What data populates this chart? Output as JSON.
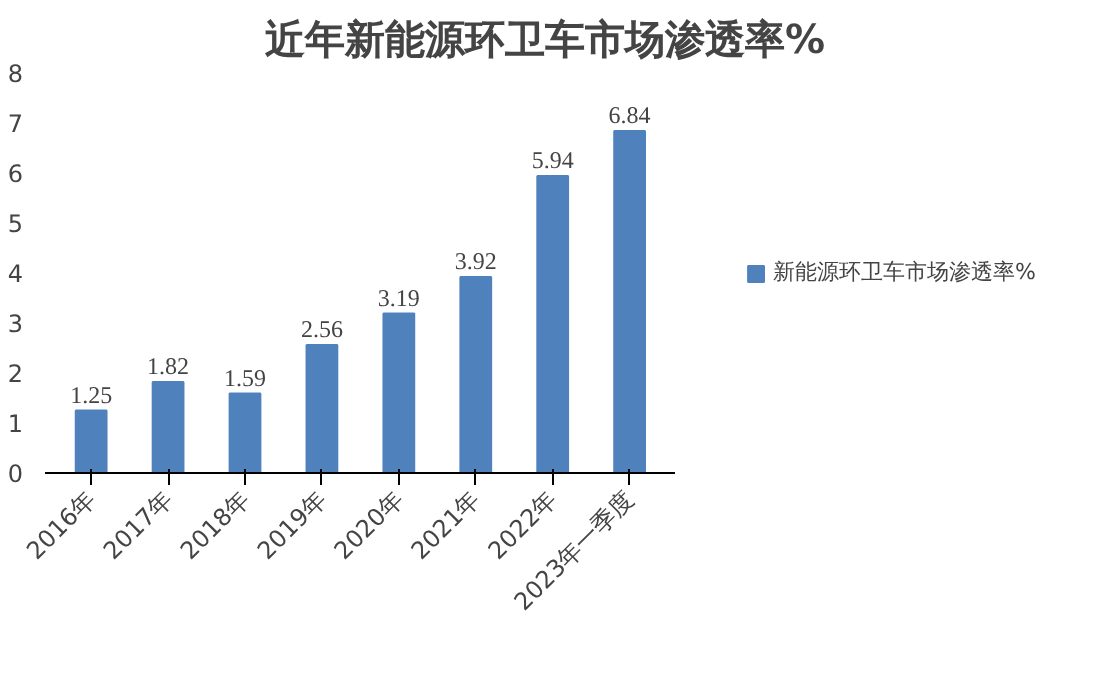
{
  "chart_data": {
    "type": "bar",
    "title": "近年新能源环卫车市场渗透率%",
    "categories": [
      "2016年",
      "2017年",
      "2018年",
      "2019年",
      "2020年",
      "2021年",
      "2022年",
      "2023年一季度"
    ],
    "series": [
      {
        "name": "新能源环卫车市场渗透率%",
        "color": "#4f81bd",
        "values": [
          1.25,
          1.82,
          1.59,
          2.56,
          3.19,
          3.92,
          5.94,
          6.84
        ]
      }
    ],
    "ylim": [
      0,
      8
    ],
    "yticks": [
      0,
      1,
      2,
      3,
      4,
      5,
      6,
      7,
      8
    ],
    "data_labels": true,
    "legend": "right",
    "grid": false
  }
}
